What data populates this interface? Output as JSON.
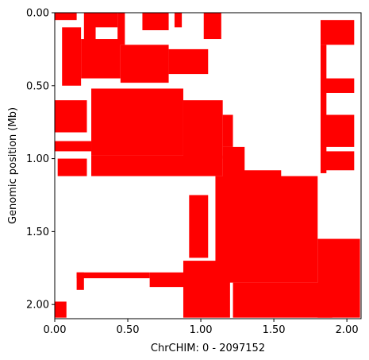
{
  "chart_data": {
    "type": "heatmap",
    "xlabel": "ChrCHIM: 0 - 2097152",
    "ylabel": "Genomic position (Mb)",
    "xlim": [
      0,
      2.097152
    ],
    "ylim": [
      2.097152,
      0
    ],
    "x_ticks": [
      "0.00",
      "0.50",
      "1.00",
      "1.50",
      "2.00"
    ],
    "x_tick_values": [
      0,
      0.5,
      1.0,
      1.5,
      2.0
    ],
    "y_ticks": [
      "0.00",
      "0.50",
      "1.00",
      "1.50",
      "2.00"
    ],
    "y_tick_values": [
      0,
      0.5,
      1.0,
      1.5,
      2.0
    ],
    "grid": false,
    "color": "#ff0000",
    "background": "#ffffff",
    "blocks": [
      {
        "x": [
          0.0,
          0.15
        ],
        "y": [
          0.0,
          0.05
        ]
      },
      {
        "x": [
          0.27,
          0.43
        ],
        "y": [
          0.0,
          0.1
        ]
      },
      {
        "x": [
          0.43,
          0.48
        ],
        "y": [
          0.0,
          0.22
        ]
      },
      {
        "x": [
          0.6,
          0.78
        ],
        "y": [
          0.0,
          0.12
        ]
      },
      {
        "x": [
          0.82,
          0.87
        ],
        "y": [
          0.0,
          0.1
        ]
      },
      {
        "x": [
          1.02,
          1.14
        ],
        "y": [
          0.0,
          0.18
        ]
      },
      {
        "x": [
          1.82,
          2.05
        ],
        "y": [
          0.05,
          0.22
        ]
      },
      {
        "x": [
          0.05,
          0.18
        ],
        "y": [
          0.1,
          0.5
        ]
      },
      {
        "x": [
          0.18,
          0.45
        ],
        "y": [
          0.18,
          0.45
        ]
      },
      {
        "x": [
          0.45,
          0.78
        ],
        "y": [
          0.22,
          0.48
        ]
      },
      {
        "x": [
          0.78,
          1.05
        ],
        "y": [
          0.25,
          0.42
        ]
      },
      {
        "x": [
          0.2,
          0.28
        ],
        "y": [
          0.0,
          0.2
        ]
      },
      {
        "x": [
          0.0,
          0.22
        ],
        "y": [
          0.6,
          0.82
        ]
      },
      {
        "x": [
          0.25,
          0.88
        ],
        "y": [
          0.52,
          0.98
        ]
      },
      {
        "x": [
          0.88,
          1.15
        ],
        "y": [
          0.6,
          1.0
        ]
      },
      {
        "x": [
          1.15,
          1.22
        ],
        "y": [
          0.7,
          0.92
        ]
      },
      {
        "x": [
          0.25,
          1.15
        ],
        "y": [
          0.98,
          1.12
        ]
      },
      {
        "x": [
          0.0,
          0.25
        ],
        "y": [
          0.88,
          0.95
        ]
      },
      {
        "x": [
          0.02,
          0.22
        ],
        "y": [
          1.0,
          1.12
        ]
      },
      {
        "x": [
          1.15,
          1.3
        ],
        "y": [
          0.92,
          1.18
        ]
      },
      {
        "x": [
          1.2,
          1.55
        ],
        "y": [
          1.08,
          1.18
        ]
      },
      {
        "x": [
          1.82,
          2.05
        ],
        "y": [
          0.7,
          0.92
        ]
      },
      {
        "x": [
          1.82,
          2.05
        ],
        "y": [
          0.95,
          1.08
        ]
      },
      {
        "x": [
          0.92,
          1.05
        ],
        "y": [
          1.25,
          1.68
        ]
      },
      {
        "x": [
          1.1,
          1.8
        ],
        "y": [
          1.12,
          1.85
        ]
      },
      {
        "x": [
          1.8,
          2.09
        ],
        "y": [
          1.55,
          2.09
        ]
      },
      {
        "x": [
          1.22,
          1.9
        ],
        "y": [
          1.85,
          2.09
        ]
      },
      {
        "x": [
          0.88,
          1.2
        ],
        "y": [
          1.7,
          2.09
        ]
      },
      {
        "x": [
          0.15,
          0.65
        ],
        "y": [
          1.78,
          1.82
        ]
      },
      {
        "x": [
          0.65,
          0.95
        ],
        "y": [
          1.78,
          1.88
        ]
      },
      {
        "x": [
          0.15,
          0.2
        ],
        "y": [
          1.78,
          1.9
        ]
      },
      {
        "x": [
          0.0,
          0.08
        ],
        "y": [
          1.98,
          2.09
        ]
      },
      {
        "x": [
          1.82,
          2.05
        ],
        "y": [
          0.45,
          0.55
        ]
      },
      {
        "x": [
          1.82,
          1.86
        ],
        "y": [
          0.22,
          1.1
        ]
      }
    ]
  }
}
